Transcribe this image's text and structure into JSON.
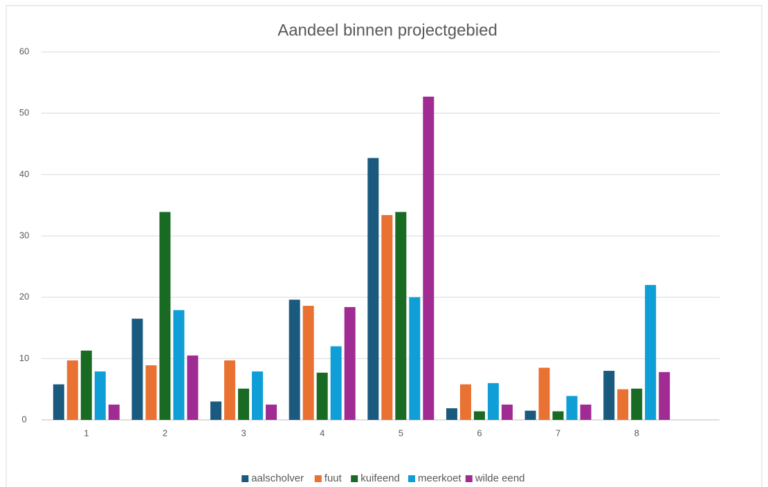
{
  "chart_data": {
    "type": "bar",
    "title": "Aandeel binnen projectgebied",
    "categories": [
      "1",
      "2",
      "3",
      "4",
      "5",
      "6",
      "7",
      "8"
    ],
    "series": [
      {
        "name": "aalscholver",
        "color": "#1b5a7f",
        "values": [
          5.8,
          16.5,
          3.0,
          19.6,
          42.7,
          1.9,
          1.5,
          8.0
        ]
      },
      {
        "name": "fuut",
        "color": "#e97132",
        "values": [
          9.7,
          8.9,
          9.7,
          18.6,
          33.4,
          5.8,
          8.5,
          5.0
        ]
      },
      {
        "name": "kuifeend",
        "color": "#196b24",
        "values": [
          11.3,
          33.9,
          5.1,
          7.7,
          33.9,
          1.4,
          1.4,
          5.1
        ]
      },
      {
        "name": "meerkoet",
        "color": "#0f9ed5",
        "values": [
          7.9,
          17.9,
          7.9,
          12.0,
          20.0,
          6.0,
          3.9,
          22.0
        ]
      },
      {
        "name": "wilde eend",
        "color": "#a02b93",
        "values": [
          2.5,
          10.5,
          2.5,
          18.4,
          52.7,
          2.5,
          2.5,
          7.8
        ]
      }
    ],
    "ylim": [
      0,
      60
    ],
    "yticks": [
      0,
      10,
      20,
      30,
      40,
      50,
      60
    ],
    "grid": true,
    "legend": "bottom"
  }
}
